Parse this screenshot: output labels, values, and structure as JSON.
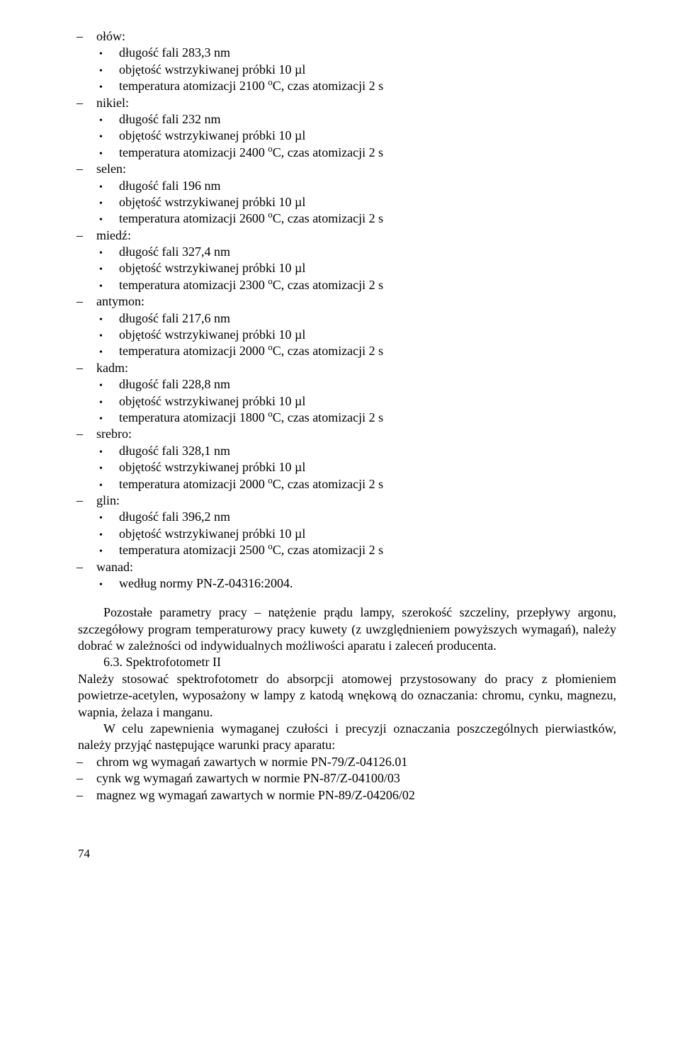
{
  "items": [
    {
      "lvl": 1,
      "text": "ołów:"
    },
    {
      "lvl": 2,
      "text": "długość fali 283,3 nm"
    },
    {
      "lvl": 2,
      "text": "objętość wstrzykiwanej próbki 10 µl"
    },
    {
      "lvl": 2,
      "html": "temperatura atomizacji 2100 <sup>o</sup>C, czas atomizacji 2 s"
    },
    {
      "lvl": 1,
      "text": "nikiel:"
    },
    {
      "lvl": 2,
      "text": "długość fali 232 nm"
    },
    {
      "lvl": 2,
      "text": "objętość wstrzykiwanej próbki 10 µl"
    },
    {
      "lvl": 2,
      "html": "temperatura atomizacji  2400 <sup>o</sup>C, czas atomizacji 2 s"
    },
    {
      "lvl": 1,
      "text": "selen:"
    },
    {
      "lvl": 2,
      "text": "długość fali 196 nm"
    },
    {
      "lvl": 2,
      "text": "objętość wstrzykiwanej próbki 10 µl"
    },
    {
      "lvl": 2,
      "html": "temperatura atomizacji 2600 <sup>o</sup>C, czas atomizacji 2 s"
    },
    {
      "lvl": 1,
      "text": "miedź:"
    },
    {
      "lvl": 2,
      "text": "długość fali 327,4 nm"
    },
    {
      "lvl": 2,
      "text": "objętość wstrzykiwanej próbki 10 µl"
    },
    {
      "lvl": 2,
      "html": "temperatura atomizacji  2300 <sup>o</sup>C, czas atomizacji  2 s"
    },
    {
      "lvl": 1,
      "text": "antymon:"
    },
    {
      "lvl": 2,
      "text": "długość fali 217,6 nm"
    },
    {
      "lvl": 2,
      "text": "objętość wstrzykiwanej próbki 10 µl"
    },
    {
      "lvl": 2,
      "html": "temperatura atomizacji  2000 <sup>o</sup>C, czas atomizacji 2 s"
    },
    {
      "lvl": 1,
      "text": "kadm:"
    },
    {
      "lvl": 2,
      "text": "długość fali 228,8 nm"
    },
    {
      "lvl": 2,
      "text": "objętość wstrzykiwanej próbki 10 µl"
    },
    {
      "lvl": 2,
      "html": "temperatura atomizacji 1800 <sup>o</sup>C, czas atomizacji 2 s"
    },
    {
      "lvl": 1,
      "text": "srebro:"
    },
    {
      "lvl": 2,
      "text": "długość fali 328,1 nm"
    },
    {
      "lvl": 2,
      "text": "objętość wstrzykiwanej próbki 10 µl"
    },
    {
      "lvl": 2,
      "html": "temperatura atomizacji 2000 <sup>o</sup>C, czas atomizacji 2 s"
    },
    {
      "lvl": 1,
      "text": "glin:"
    },
    {
      "lvl": 2,
      "text": "długość fali 396,2 nm"
    },
    {
      "lvl": 2,
      "text": "objętość wstrzykiwanej próbki 10 µl"
    },
    {
      "lvl": 2,
      "html": "temperatura atomizacji 2500 <sup>o</sup>C, czas atomizacji 2 s"
    },
    {
      "lvl": 1,
      "text": "wanad:"
    },
    {
      "lvl": 2,
      "text": "według normy PN-Z-04316:2004."
    }
  ],
  "paragraph1": "Pozostałe parametry pracy – natężenie prądu lampy, szerokość szczeliny, przepływy argonu, szczegółowy program temperaturowy pracy kuwety (z uwzględnieniem powyższych wymagań), należy dobrać w zależności od indywidualnych możliwości aparatu i zaleceń producenta.",
  "section_num": "6.3. Spektrofotometr II",
  "paragraph2": "Należy stosować spektrofotometr do absorpcji atomowej przystosowany do pracy z płomieniem powietrze-acetylen, wyposażony w lampy z katodą wnękową do oznaczania: chromu, cynku, magnezu, wapnia, żelaza i manganu.",
  "paragraph3": "W celu zapewnienia wymaganej czułości i precyzji oznaczania poszczególnych pierwiastków, należy przyjąć następujące warunki pracy aparatu:",
  "refs": [
    "chrom  wg wymagań zawartych w normie PN-79/Z-04126.01",
    "cynk wg wymagań zawartych w normie PN-87/Z-04100/03",
    "magnez wg wymagań zawartych w normie PN-89/Z-04206/02"
  ],
  "page_number": "74"
}
